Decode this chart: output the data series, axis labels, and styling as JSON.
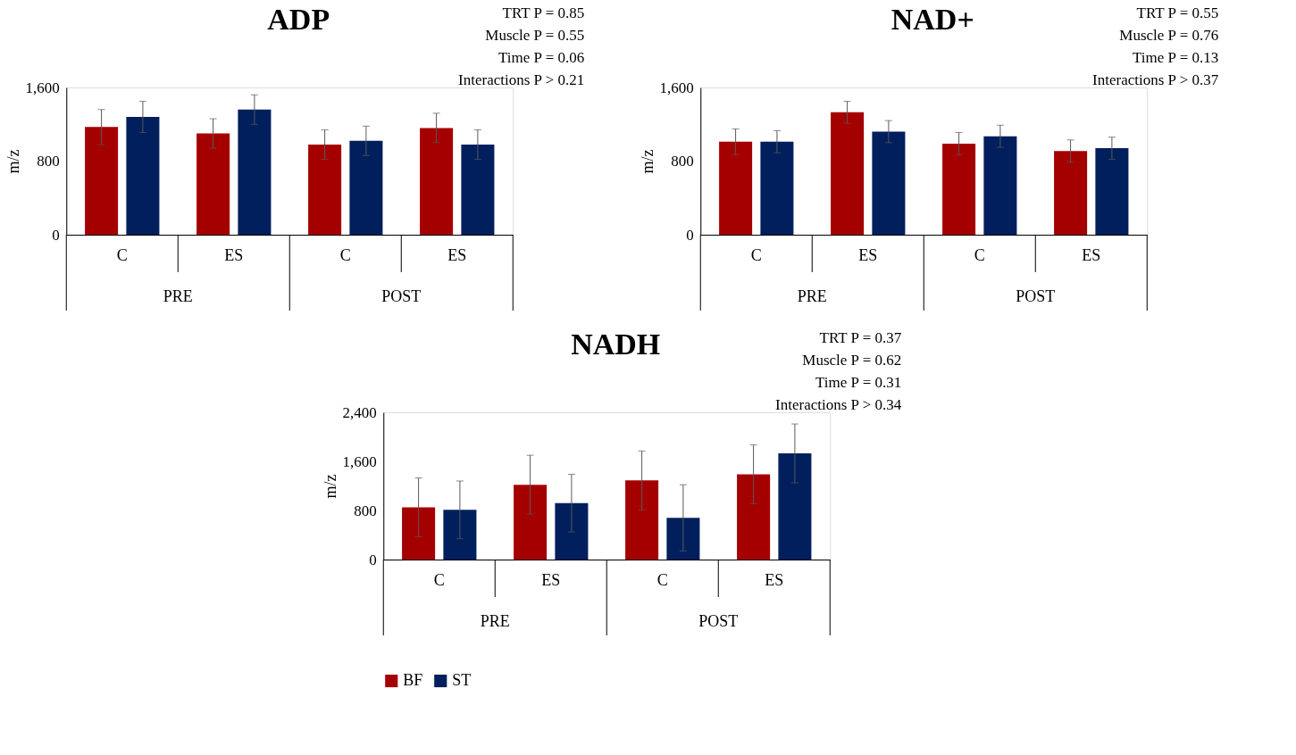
{
  "chart_data": [
    {
      "type": "bar",
      "title": "ADP",
      "ylabel": "m/z",
      "categories": [
        "C",
        "ES",
        "C",
        "ES"
      ],
      "ylim": [
        0,
        1600
      ],
      "yticks": [
        {
          "value": 0,
          "label": "0"
        },
        {
          "value": 800,
          "label": "800"
        },
        {
          "value": 1600,
          "label": "1,600"
        }
      ],
      "grid": false,
      "annotations": [
        "TRT P = 0.85",
        "Muscle P = 0.55",
        "Time P = 0.06",
        "Interactions P > 0.21",
        "PRE",
        "POST"
      ],
      "series": [
        {
          "color": "#a50000",
          "values": [
            1170,
            1100,
            980,
            1160
          ],
          "errors": [
            190,
            160,
            160,
            160
          ]
        },
        {
          "color": "#001f5c",
          "values": [
            1280,
            1360,
            1020,
            980
          ],
          "errors": [
            170,
            160,
            160,
            160
          ]
        }
      ]
    },
    {
      "type": "bar",
      "title": "NAD+",
      "ylabel": "m/z",
      "categories": [
        "C",
        "ES",
        "C",
        "ES"
      ],
      "ylim": [
        0,
        1600
      ],
      "yticks": [
        {
          "value": 0,
          "label": "0"
        },
        {
          "value": 800,
          "label": "800"
        },
        {
          "value": 1600,
          "label": "1,600"
        }
      ],
      "grid": false,
      "annotations": [
        "TRT P = 0.55",
        "Muscle P = 0.76",
        "Time P = 0.13",
        "Interactions P > 0.37",
        "PRE",
        "POST"
      ],
      "series": [
        {
          "color": "#a50000",
          "values": [
            1010,
            1330,
            990,
            910
          ],
          "errors": [
            140,
            120,
            120,
            120
          ]
        },
        {
          "color": "#001f5c",
          "values": [
            1010,
            1120,
            1070,
            940
          ],
          "errors": [
            120,
            120,
            120,
            120
          ]
        }
      ]
    },
    {
      "type": "bar",
      "title": "NADH",
      "ylabel": "m/z",
      "categories": [
        "C",
        "ES",
        "C",
        "ES"
      ],
      "ylim": [
        0,
        2400
      ],
      "yticks": [
        {
          "value": 0,
          "label": "0"
        },
        {
          "value": 800,
          "label": "800"
        },
        {
          "value": 1600,
          "label": "1,600"
        },
        {
          "value": 2400,
          "label": "2,400"
        }
      ],
      "grid": false,
      "legend": "bottom",
      "annotations": [
        "TRT P = 0.37",
        "Muscle P = 0.62",
        "Time P = 0.31",
        "Interactions P > 0.34",
        "PRE",
        "POST"
      ],
      "series": [
        {
          "name": "BF",
          "color": "#a50000",
          "values": [
            850,
            1220,
            1290,
            1390
          ],
          "errors": [
            480,
            480,
            480,
            480
          ]
        },
        {
          "name": "ST",
          "color": "#001f5c",
          "values": [
            810,
            920,
            680,
            1730
          ],
          "errors": [
            470,
            470,
            540,
            480
          ]
        }
      ]
    }
  ]
}
